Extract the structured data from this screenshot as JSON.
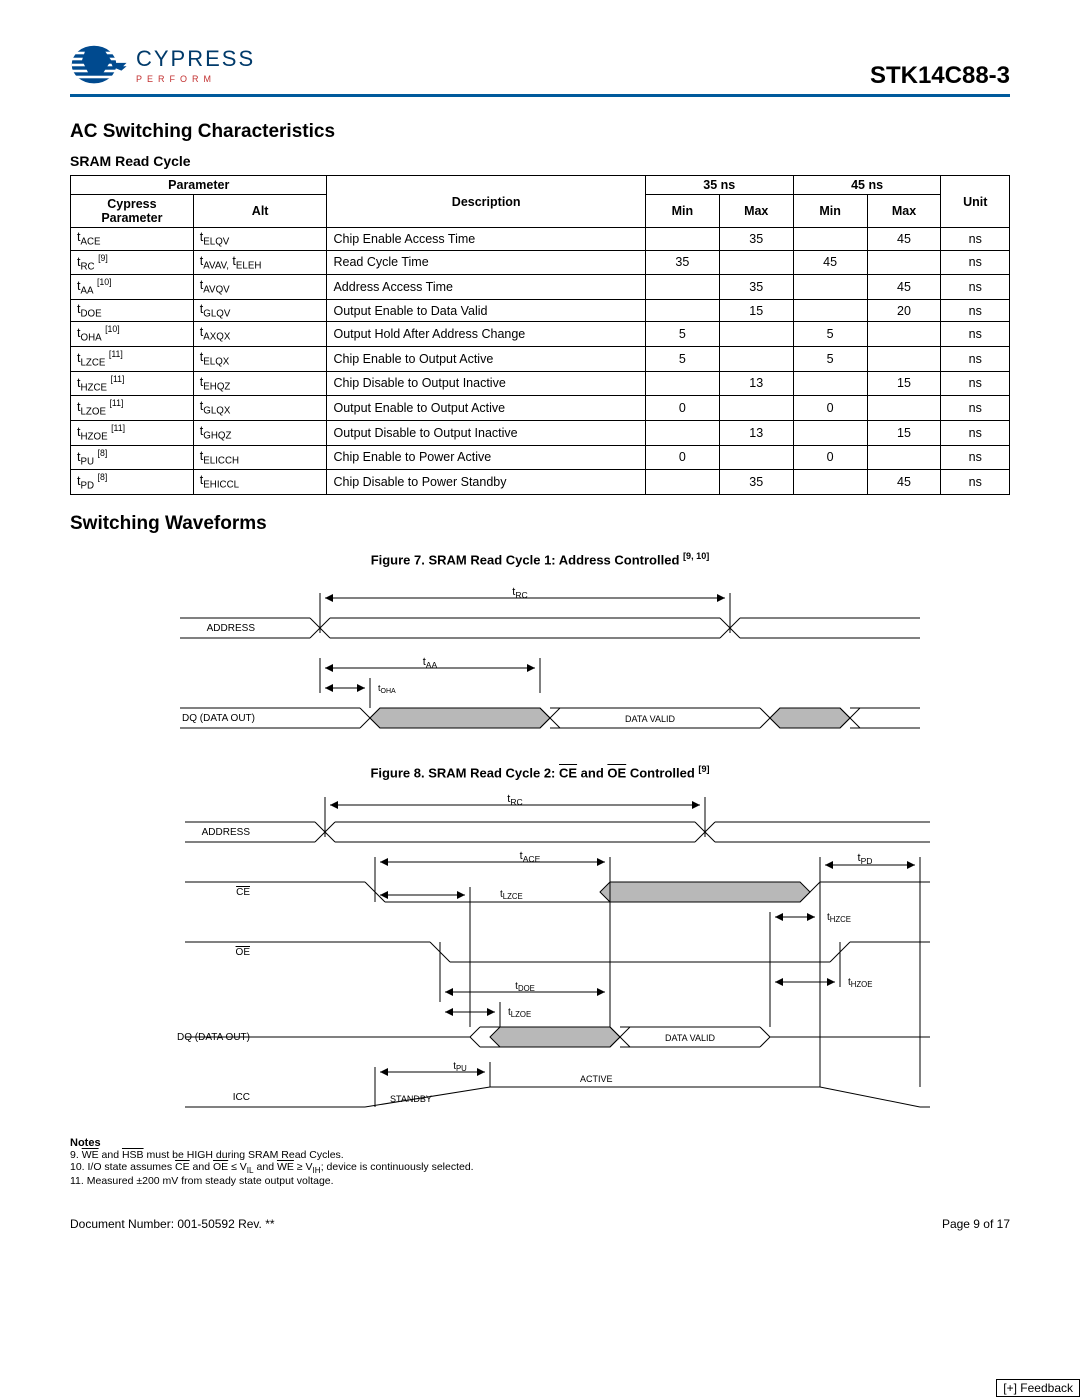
{
  "header": {
    "brand": "CYPRESS",
    "tagline": "PERFORM",
    "part": "STK14C88-3"
  },
  "h2_ac": "AC Switching Characteristics",
  "h3_sram": "SRAM Read Cycle",
  "table": {
    "head": {
      "parameter": "Parameter",
      "cypress": "Cypress Parameter",
      "alt": "Alt",
      "desc": "Description",
      "c35": "35 ns",
      "c45": "45 ns",
      "min": "Min",
      "max": "Max",
      "unit": "Unit"
    },
    "rows": [
      {
        "p": "t<sub class='sub'>ACE</sub>",
        "a": "t<sub class='sub'>ELQV</sub>",
        "d": "Chip Enable Access Time",
        "min35": "",
        "max35": "35",
        "min45": "",
        "max45": "45",
        "u": "ns"
      },
      {
        "p": "t<sub class='sub'>RC</sub> <sup>[9]</sup>",
        "a": "t<sub class='sub'>AVAV,</sub> t<sub class='sub'>ELEH</sub>",
        "d": "Read Cycle Time",
        "min35": "35",
        "max35": "",
        "min45": "45",
        "max45": "",
        "u": "ns"
      },
      {
        "p": "t<sub class='sub'>AA</sub> <sup>[10]</sup>",
        "a": "t<sub class='sub'>AVQV</sub>",
        "d": "Address Access Time",
        "min35": "",
        "max35": "35",
        "min45": "",
        "max45": "45",
        "u": "ns"
      },
      {
        "p": "t<sub class='sub'>DOE</sub>",
        "a": "t<sub class='sub'>GLQV</sub>",
        "d": "Output Enable to Data Valid",
        "min35": "",
        "max35": "15",
        "min45": "",
        "max45": "20",
        "u": "ns"
      },
      {
        "p": "t<sub class='sub'>OHA</sub> <sup>[10]</sup>",
        "a": "t<sub class='sub'>AXQX</sub>",
        "d": "Output Hold After Address Change",
        "min35": "5",
        "max35": "",
        "min45": "5",
        "max45": "",
        "u": "ns"
      },
      {
        "p": "t<sub class='sub'>LZCE</sub> <sup>[11]</sup>",
        "a": "t<sub class='sub'>ELQX</sub>",
        "d": "Chip Enable to Output Active",
        "min35": "5",
        "max35": "",
        "min45": "5",
        "max45": "",
        "u": "ns"
      },
      {
        "p": "t<sub class='sub'>HZCE</sub> <sup>[11]</sup>",
        "a": "t<sub class='sub'>EHQZ</sub>",
        "d": "Chip Disable to Output Inactive",
        "min35": "",
        "max35": "13",
        "min45": "",
        "max45": "15",
        "u": "ns"
      },
      {
        "p": "t<sub class='sub'>LZOE</sub> <sup>[11]</sup>",
        "a": "t<sub class='sub'>GLQX</sub>",
        "d": "Output Enable to Output Active",
        "min35": "0",
        "max35": "",
        "min45": "0",
        "max45": "",
        "u": "ns"
      },
      {
        "p": "t<sub class='sub'>HZOE</sub> <sup>[11]</sup>",
        "a": "t<sub class='sub'>GHQZ</sub>",
        "d": "Output Disable to Output Inactive",
        "min35": "",
        "max35": "13",
        "min45": "",
        "max45": "15",
        "u": "ns"
      },
      {
        "p": "t<sub class='sub'>PU</sub> <sup>[8]</sup>",
        "a": "t<sub class='sub'>ELICCH</sub>",
        "d": "Chip Enable to Power Active",
        "min35": "0",
        "max35": "",
        "min45": "0",
        "max45": "",
        "u": "ns"
      },
      {
        "p": "t<sub class='sub'>PD</sub> <sup>[8]</sup>",
        "a": "t<sub class='sub'>EHICCL</sub>",
        "d": "Chip Disable to Power Standby",
        "min35": "",
        "max35": "35",
        "min45": "",
        "max45": "45",
        "u": "ns"
      }
    ]
  },
  "h2_sw": "Switching Waveforms",
  "fig7": "Figure 7.  SRAM Read Cycle 1: Address Controlled <sup>[9, 10]</sup>",
  "fig8": "Figure 8.  SRAM Read Cycle 2: <span class='ovl'>CE</span> and <span class='ovl'>OE</span> Controlled <sup>[9]</sup>",
  "diagram1": {
    "labels": {
      "address": "ADDRESS",
      "dq": "DQ (DATA OUT)",
      "datavalid": "DATA VALID",
      "trc": "t",
      "trc_sub": "RC",
      "taa": "t",
      "taa_sub": "AA",
      "toha": "t",
      "toha_sub": "OHA"
    }
  },
  "diagram2": {
    "labels": {
      "address": "ADDRESS",
      "ce": "CE",
      "oe": "OE",
      "dq": "DQ (DATA OUT)",
      "icc": "ICC",
      "datavalid": "DATA VALID",
      "standby": "STANDBY",
      "active": "ACTIVE",
      "trc": "t",
      "trc_sub": "RC",
      "tace": "t",
      "tace_sub": "ACE",
      "tpd": "t",
      "tpd_sub": "PD",
      "tlzce": "t",
      "tlzce_sub": "LZCE",
      "thzce": "t",
      "thzce_sub": "HZCE",
      "tdoe": "t",
      "tdoe_sub": "DOE",
      "thzoe": "t",
      "thzoe_sub": "HZOE",
      "tlzoe": "t",
      "tlzoe_sub": "LZOE",
      "tpu": "t",
      "tpu_sub": "PU"
    }
  },
  "notes": {
    "title": "Notes",
    "n9": "9. <span class='ovl'>WE</span> and <span class='ovl'>HSB</span> must be HIGH during SRAM Read Cycles.",
    "n10": "10. I/O state assumes <span class='ovl'>CE</span> and <span class='ovl'>OE</span> ≤ V<sub class='sub'>IL</sub> and <span class='ovl'>WE</span> ≥ V<sub class='sub'>IH</sub>; device is continuously selected.",
    "n11": "11. Measured ±200 mV from steady state output voltage."
  },
  "footer": {
    "doc": "Document Number: 001-50592 Rev. **",
    "page": "Page 9 of 17",
    "feedback": "[+] Feedback"
  },
  "colors": {
    "accent": "#005a9c",
    "grayfill": "#b8b8b8"
  }
}
